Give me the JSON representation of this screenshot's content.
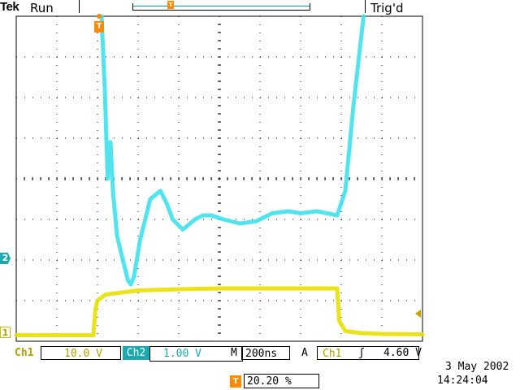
{
  "header": {
    "brand": "Tek",
    "acq_state": "Run",
    "trigger_status": "Trig'd",
    "record_marker_icon": "trigger-position-icon"
  },
  "display": {
    "graticule": {
      "divisions_x": 10,
      "divisions_y": 8,
      "grid": true
    },
    "trace_colors": {
      "ch1": "#e8e000",
      "ch2": "#3ee0ec"
    },
    "markers": {
      "ch1": "1",
      "ch2": "2",
      "trigger_position": "T"
    }
  },
  "channels": {
    "ch1": {
      "label": "Ch1",
      "scale": "10.0 V",
      "color": "#c8c000"
    },
    "ch2": {
      "label": "Ch2",
      "scale": "1.00 V",
      "color": "#1aaab0"
    }
  },
  "timebase": {
    "label": "M",
    "scale": "200ns"
  },
  "trigger": {
    "mode_label": "A",
    "source": "Ch1",
    "slope_icon": "rising-edge-icon",
    "slope_symbol": "ʃ",
    "level": "4.60 V",
    "position_icon_text": "T",
    "position": "20.20 %"
  },
  "clock": {
    "date": "3 May 2002",
    "time": "14:24:04"
  },
  "chart_data": {
    "type": "line",
    "x_unit": "div",
    "y_unit": "div",
    "xlim": [
      0,
      10
    ],
    "ylim": [
      -4,
      4
    ],
    "grid": true,
    "series": [
      {
        "name": "Ch1",
        "color": "#e8e000",
        "x": [
          0,
          1.9,
          1.95,
          2.0,
          2.2,
          3.0,
          4.0,
          5.0,
          6.0,
          7.0,
          7.9,
          7.95,
          8.1,
          8.5,
          9.0,
          10.0
        ],
        "y": [
          -3.85,
          -3.85,
          -3.2,
          -3.0,
          -2.85,
          -2.75,
          -2.72,
          -2.7,
          -2.7,
          -2.7,
          -2.7,
          -3.5,
          -3.75,
          -3.8,
          -3.82,
          -3.83
        ]
      },
      {
        "name": "Ch2",
        "color": "#3ee0ec",
        "x": [
          2.1,
          2.18,
          2.25,
          2.32,
          2.38,
          2.48,
          2.6,
          2.75,
          2.82,
          2.9,
          3.05,
          3.3,
          3.55,
          3.7,
          3.85,
          4.1,
          4.4,
          4.6,
          4.8,
          5.1,
          5.5,
          5.9,
          6.3,
          6.7,
          7.0,
          7.4,
          7.9,
          8.0,
          8.1,
          8.3,
          8.55
        ],
        "y": [
          4.0,
          2.2,
          0.0,
          0.9,
          -0.3,
          -1.4,
          -1.9,
          -2.5,
          -2.6,
          -2.4,
          -1.5,
          -0.5,
          -0.3,
          -0.6,
          -1.0,
          -1.25,
          -1.0,
          -0.9,
          -0.9,
          -1.0,
          -1.1,
          -1.05,
          -0.85,
          -0.8,
          -0.85,
          -0.8,
          -0.9,
          -0.6,
          -0.3,
          1.8,
          4.0
        ]
      }
    ]
  }
}
